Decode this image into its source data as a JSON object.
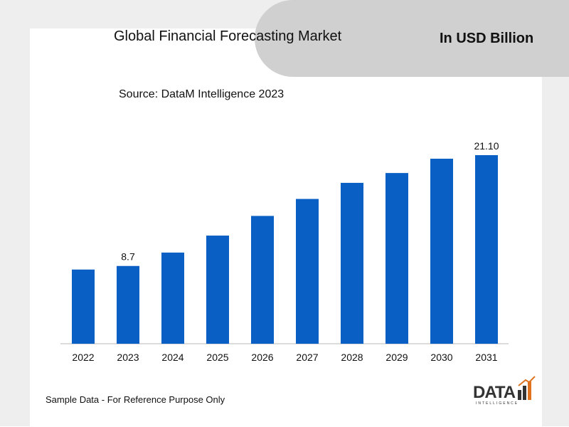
{
  "header": {
    "title": "Global Financial Forecasting Market",
    "unit_label": "In USD Billion",
    "source": "Source: DataM Intelligence 2023"
  },
  "footer": {
    "note": "Sample Data - For Reference Purpose Only",
    "logo_text": "DATA",
    "logo_sub": "INTELLIGENCE"
  },
  "colors": {
    "bar": "#0a5fc4",
    "panel": "#d0d0d0"
  },
  "chart_data": {
    "type": "bar",
    "categories": [
      "2022",
      "2023",
      "2024",
      "2025",
      "2026",
      "2027",
      "2028",
      "2029",
      "2030",
      "2031"
    ],
    "values": [
      8.3,
      8.7,
      10.2,
      12.1,
      14.3,
      16.2,
      18.0,
      19.1,
      20.7,
      21.1
    ],
    "data_labels": [
      null,
      "8.7",
      null,
      null,
      null,
      null,
      null,
      null,
      null,
      "21.10"
    ],
    "title": "Global Financial Forecasting Market",
    "ylim": [
      0,
      21.1
    ],
    "grid": false,
    "legend": "none"
  }
}
